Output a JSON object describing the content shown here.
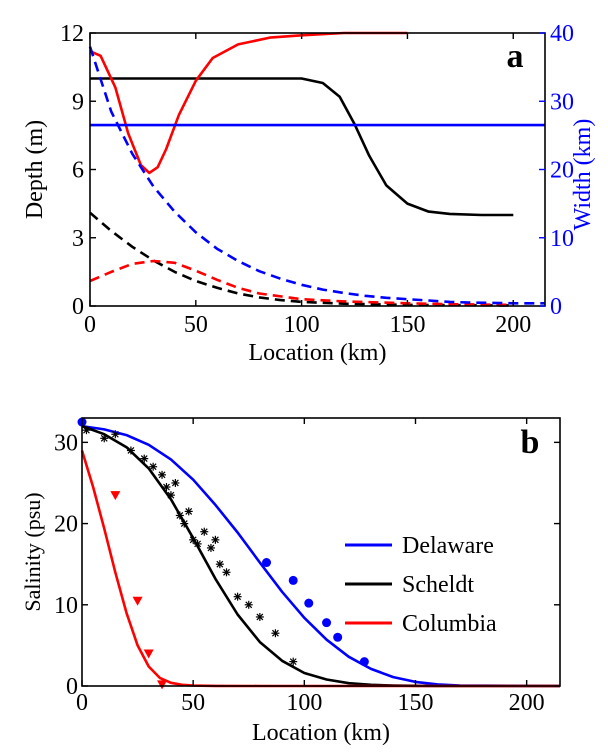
{
  "chart_data": [
    {
      "type": "line",
      "panel_label": "a",
      "xlabel": "Location (km)",
      "ylabel": "Depth (m)",
      "y2label": "Width (km)",
      "xlim": [
        0,
        215
      ],
      "ylim": [
        0,
        12
      ],
      "y2lim": [
        0,
        40
      ],
      "xticks": [
        "0",
        "50",
        "100",
        "150",
        "200"
      ],
      "yticks": [
        "0",
        "3",
        "6",
        "9",
        "12"
      ],
      "y2ticks": [
        "0",
        "10",
        "20",
        "30",
        "40"
      ],
      "colors": {
        "axis_left": "#000000",
        "axis_right": "#0000ff"
      },
      "series": [
        {
          "axis": "left",
          "color": "#000000",
          "dash": false,
          "x": [
            0,
            90,
            100,
            110,
            118,
            125,
            132,
            140,
            150,
            160,
            170,
            185,
            200
          ],
          "y": [
            10,
            10,
            10,
            9.8,
            9.2,
            8.0,
            6.6,
            5.3,
            4.5,
            4.15,
            4.05,
            4.0,
            4.0
          ]
        },
        {
          "axis": "left",
          "color": "#000000",
          "dash": true,
          "x": [
            0,
            10,
            20,
            30,
            40,
            50,
            60,
            70,
            80,
            90,
            100,
            120,
            150,
            200
          ],
          "y": [
            4.1,
            3.3,
            2.6,
            2.0,
            1.5,
            1.1,
            0.8,
            0.55,
            0.38,
            0.26,
            0.18,
            0.1,
            0.05,
            0.02
          ]
        },
        {
          "axis": "left",
          "color": "#ff0000",
          "dash": true,
          "x": [
            0,
            10,
            20,
            30,
            40,
            50,
            60,
            70,
            80,
            100,
            120,
            150,
            170,
            200
          ],
          "y": [
            1.1,
            1.5,
            1.85,
            1.98,
            1.9,
            1.55,
            1.15,
            0.8,
            0.55,
            0.3,
            0.2,
            0.12,
            0.08,
            0.05
          ]
        },
        {
          "axis": "left",
          "color": "#ff0000",
          "dash": false,
          "x": [
            0,
            5,
            12,
            18,
            24,
            28,
            32,
            36,
            42,
            50,
            58,
            70,
            85,
            100,
            120,
            140,
            150
          ],
          "y": [
            11.2,
            11.0,
            9.6,
            7.6,
            6.2,
            5.85,
            6.1,
            6.9,
            8.4,
            9.9,
            10.9,
            11.5,
            11.8,
            11.9,
            12.0,
            12.0,
            12.0
          ]
        },
        {
          "axis": "right",
          "color": "#0000ff",
          "dash": true,
          "x": [
            0,
            10,
            20,
            30,
            40,
            50,
            60,
            70,
            80,
            90,
            100,
            110,
            120,
            130,
            140,
            150,
            160,
            170,
            180,
            190,
            200,
            215
          ],
          "y": [
            38,
            28.5,
            22.3,
            17.5,
            13.8,
            10.8,
            8.4,
            6.6,
            5.1,
            4.0,
            3.1,
            2.4,
            1.9,
            1.5,
            1.2,
            1.0,
            0.8,
            0.6,
            0.5,
            0.45,
            0.4,
            0.4
          ]
        },
        {
          "axis": "right",
          "color": "#0000ff",
          "dash": false,
          "x": [
            0,
            215
          ],
          "y": [
            26.5,
            26.5
          ]
        }
      ]
    },
    {
      "type": "line",
      "panel_label": "b",
      "xlabel": "Location (km)",
      "ylabel": "Salinity (psu)",
      "xlim": [
        0,
        215
      ],
      "ylim": [
        0,
        33
      ],
      "xticks": [
        "0",
        "50",
        "100",
        "150",
        "200"
      ],
      "yticks": [
        "0",
        "10",
        "20",
        "30"
      ],
      "legend": "right",
      "series": [
        {
          "name": "Delaware",
          "color": "#0000ff",
          "marker": "circle",
          "x": [
            0,
            10,
            20,
            30,
            40,
            50,
            60,
            70,
            80,
            90,
            100,
            110,
            120,
            130,
            140,
            150,
            160,
            170,
            215
          ],
          "y": [
            32,
            31.6,
            30.9,
            29.7,
            27.9,
            25.4,
            22.3,
            18.9,
            15.2,
            11.6,
            8.4,
            5.7,
            3.6,
            2.1,
            1.1,
            0.5,
            0.2,
            0.05,
            0
          ],
          "obs_x": [
            0,
            83,
            95,
            102,
            110,
            115,
            127
          ],
          "obs_y": [
            32.5,
            15.2,
            13.0,
            10.2,
            7.8,
            6.0,
            3.0
          ]
        },
        {
          "name": "Scheldt",
          "color": "#000000",
          "marker": "star",
          "x": [
            0,
            10,
            20,
            30,
            40,
            50,
            60,
            70,
            80,
            90,
            100,
            110,
            120,
            130,
            140,
            150,
            160,
            215
          ],
          "y": [
            32,
            31.0,
            29.4,
            26.8,
            23.0,
            18.2,
            13.2,
            8.8,
            5.4,
            3.1,
            1.6,
            0.8,
            0.35,
            0.15,
            0.06,
            0.02,
            0,
            0
          ],
          "obs_x": [
            2,
            10,
            15,
            22,
            28,
            32,
            36,
            38,
            40,
            42,
            44,
            46,
            48,
            50,
            52,
            55,
            58,
            60,
            62,
            65,
            70,
            75,
            80,
            87,
            95
          ],
          "obs_y": [
            31.5,
            30.5,
            31,
            29,
            28,
            27,
            26,
            24.5,
            23.5,
            25,
            21,
            20,
            21.5,
            18,
            17.5,
            19,
            17,
            18,
            15,
            14,
            11,
            10,
            8.5,
            6.5,
            3.0
          ]
        },
        {
          "name": "Columbia",
          "color": "#ff0000",
          "marker": "triangle",
          "x": [
            0,
            5,
            10,
            15,
            20,
            25,
            30,
            35,
            40,
            45,
            50,
            60,
            80,
            215
          ],
          "y": [
            29,
            24.5,
            19.4,
            14.0,
            9.0,
            5.0,
            2.4,
            1.0,
            0.4,
            0.15,
            0.05,
            0.01,
            0,
            0
          ],
          "obs_x": [
            15,
            25,
            30,
            36
          ],
          "obs_y": [
            23.5,
            10.5,
            4.0,
            0.2
          ]
        }
      ]
    }
  ]
}
